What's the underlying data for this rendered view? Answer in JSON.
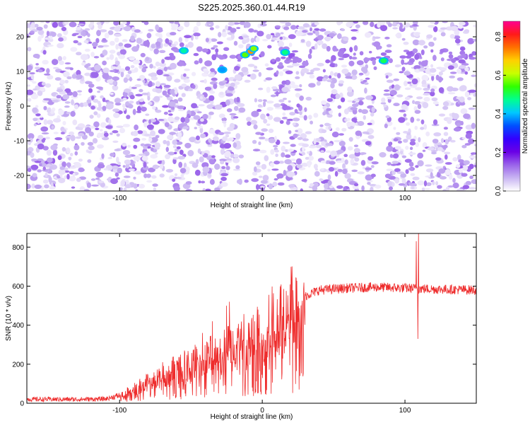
{
  "title": "S225.2025.360.01.44.R19",
  "chart_data": [
    {
      "type": "heatmap",
      "xlabel": "Height of straight line (km)",
      "ylabel": "Frequency (Hz)",
      "xlim": [
        -165,
        150
      ],
      "ylim": [
        -24.5,
        24.5
      ],
      "xticks": [
        -100,
        0,
        100
      ],
      "yticks": [
        -20,
        -10,
        0,
        10,
        20
      ],
      "colorbar": {
        "label": "Normalized spectral amplitude",
        "range": [
          0,
          0.88
        ],
        "ticks": [
          "0.0",
          "0.2",
          "0.4",
          "0.6",
          "0.8"
        ],
        "colors": [
          "#ffffff",
          "#c9b5f2",
          "#9a63ea",
          "#6a00e6",
          "#3300ff",
          "#0050ff",
          "#00c8ff",
          "#00ff90",
          "#30ff00",
          "#c8ff00",
          "#ffd000",
          "#ff7000",
          "#ff1a1a",
          "#ff0090"
        ]
      },
      "band": {
        "freq_hz": 14.5,
        "description_values": [
          0.35,
          0.45
        ]
      },
      "peaks": [
        {
          "x": -55,
          "y": 16,
          "v": 0.46
        },
        {
          "x": -28,
          "y": 10.5,
          "v": 0.38
        },
        {
          "x": -12,
          "y": 14.8,
          "v": 0.56
        },
        {
          "x": -8,
          "y": 15.8,
          "v": 0.72
        },
        {
          "x": -6,
          "y": 16.6,
          "v": 0.58
        },
        {
          "x": 16,
          "y": 15.5,
          "v": 0.48
        },
        {
          "x": 85,
          "y": 13.1,
          "v": 0.5
        }
      ],
      "gaps": [
        {
          "x": -10,
          "y_from": -24.5,
          "y_to": 8
        },
        {
          "x": 82,
          "y_from": -24.5,
          "y_to": 10
        }
      ]
    },
    {
      "type": "line",
      "xlabel": "Height of straight line (km)",
      "ylabel": "SNR (10 * v/v)",
      "xlim": [
        -165,
        150
      ],
      "ylim": [
        0,
        870
      ],
      "xticks": [
        -100,
        0,
        100
      ],
      "yticks": [
        0,
        200,
        400,
        600,
        800
      ],
      "series": [
        {
          "color": "#ee2b2b",
          "trend": {
            "x": [
              -165,
              -130,
              -110,
              -100,
              -90,
              -80,
              -70,
              -60,
              -50,
              -40,
              -30,
              -20,
              -10,
              0,
              10,
              20,
              30,
              40,
              50,
              60,
              80,
              100,
              120,
              150
            ],
            "y": [
              20,
              20,
              22,
              40,
              70,
              110,
              145,
              175,
              200,
              230,
              260,
              300,
              340,
              380,
              430,
              490,
              550,
              580,
              585,
              590,
              595,
              590,
              585,
              580
            ]
          },
          "spikes": [
            {
              "x": -23,
              "y": 520
            },
            {
              "x": -25,
              "y": 500
            },
            {
              "x": -35,
              "y": 420
            },
            {
              "x": -42,
              "y": 360
            },
            {
              "x": 108,
              "y": 830
            },
            {
              "x": 109.5,
              "y": 870
            },
            {
              "x": 109,
              "y": 330
            }
          ]
        }
      ]
    }
  ]
}
